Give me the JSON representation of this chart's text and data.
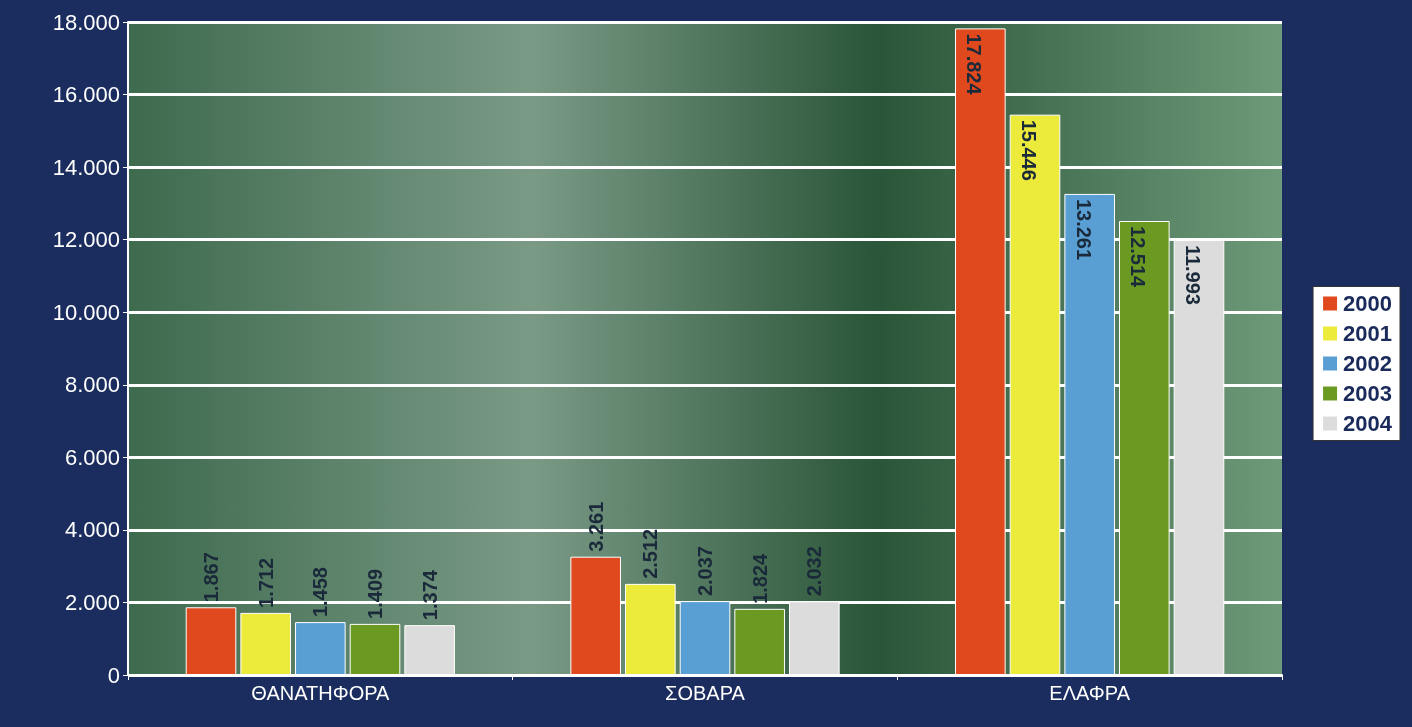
{
  "chart_data": {
    "type": "bar",
    "categories": [
      "ΘΑΝΑΤΗΦΟΡΑ",
      "ΣΟΒΑΡΑ",
      "ΕΛΑΦΡΑ"
    ],
    "series": [
      {
        "name": "2000",
        "color": "#e0481e",
        "values": [
          1867,
          3261,
          17824
        ],
        "value_labels": [
          "1.867",
          "3.261",
          "17.824"
        ]
      },
      {
        "name": "2001",
        "color": "#ecea3a",
        "values": [
          1712,
          2512,
          15446
        ],
        "value_labels": [
          "1.712",
          "2.512",
          "15.446"
        ]
      },
      {
        "name": "2002",
        "color": "#5a9fd4",
        "values": [
          1458,
          2037,
          13261
        ],
        "value_labels": [
          "1.458",
          "2.037",
          "13.261"
        ]
      },
      {
        "name": "2003",
        "color": "#6a9a22",
        "values": [
          1409,
          1824,
          12514
        ],
        "value_labels": [
          "1.409",
          "1.824",
          "12.514"
        ]
      },
      {
        "name": "2004",
        "color": "#dcdcdc",
        "values": [
          1374,
          2032,
          11993
        ],
        "value_labels": [
          "1.374",
          "2.032",
          "11.993"
        ]
      }
    ],
    "ylim": [
      0,
      18000
    ],
    "yticks": [
      {
        "value": 0,
        "label": "0"
      },
      {
        "value": 2000,
        "label": "2.000"
      },
      {
        "value": 4000,
        "label": "4.000"
      },
      {
        "value": 6000,
        "label": "6.000"
      },
      {
        "value": 8000,
        "label": "8.000"
      },
      {
        "value": 10000,
        "label": "10.000"
      },
      {
        "value": 12000,
        "label": "12.000"
      },
      {
        "value": 14000,
        "label": "14.000"
      },
      {
        "value": 16000,
        "label": "16.000"
      },
      {
        "value": 18000,
        "label": "18.000"
      }
    ],
    "grid": "y",
    "legend": "right"
  }
}
